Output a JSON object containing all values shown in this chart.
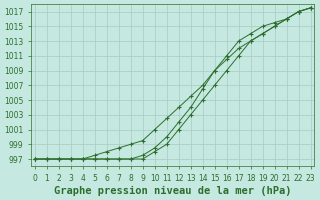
{
  "x": [
    0,
    1,
    2,
    3,
    4,
    5,
    6,
    7,
    8,
    9,
    10,
    11,
    12,
    13,
    14,
    15,
    16,
    17,
    18,
    19,
    20,
    21,
    22,
    23
  ],
  "line1": [
    997,
    997,
    997,
    997,
    997,
    997,
    997,
    997,
    997,
    997,
    998,
    999,
    1001,
    1003,
    1005,
    1007,
    1009,
    1011,
    1013,
    1014,
    1015,
    1016,
    1017,
    1017.5
  ],
  "line2": [
    997,
    997,
    997,
    997,
    997,
    997,
    997,
    997,
    997,
    997.5,
    998.5,
    1000,
    1002,
    1004,
    1006.5,
    1009,
    1011,
    1013,
    1014,
    1015,
    1015.5,
    1016,
    1017,
    1017.5
  ],
  "line3": [
    997,
    997,
    997,
    997,
    997,
    997.5,
    998,
    998.5,
    999,
    999.5,
    1001,
    1002.5,
    1004,
    1005.5,
    1007,
    1009,
    1010.5,
    1012,
    1013,
    1014,
    1015,
    1016,
    1017,
    1017.5
  ],
  "bg_color": "#c5e8e0",
  "grid_color": "#a8ccc4",
  "line_color": "#2d6e2d",
  "xlabel": "Graphe pression niveau de la mer (hPa)",
  "ylim_min": 996.0,
  "ylim_max": 1018.0,
  "yticks": [
    997,
    999,
    1001,
    1003,
    1005,
    1007,
    1009,
    1011,
    1013,
    1015,
    1017
  ],
  "title_fontsize": 7.5,
  "tick_fontsize": 5.5
}
